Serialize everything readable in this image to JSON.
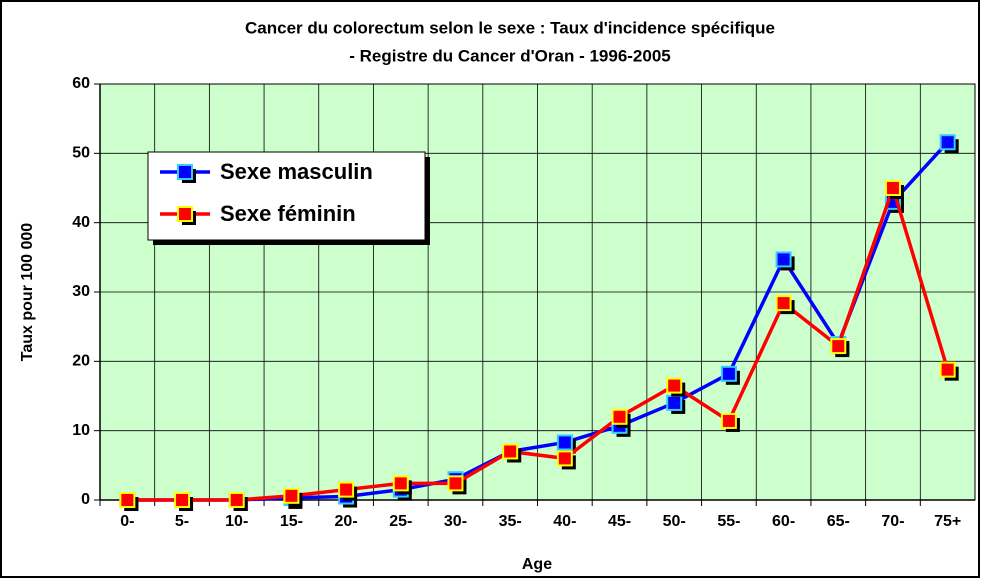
{
  "chart_data": {
    "type": "line",
    "title": "Cancer du colorectum selon le sexe : Taux d'incidence spécifique",
    "subtitle": "- Registre du Cancer d'Oran  - 1996-2005",
    "x_label": "Age",
    "y_label": "Taux pour 100 000",
    "categories": [
      "0-",
      "5-",
      "10-",
      "15-",
      "20-",
      "25-",
      "30-",
      "35-",
      "40-",
      "45-",
      "50-",
      "55-",
      "60-",
      "65-",
      "70-",
      "75+"
    ],
    "series": [
      {
        "name": "Sexe masculin",
        "color": "#0000ff",
        "marker_fill": "#0000ff",
        "marker_edge": "#33ccff",
        "values": [
          0,
          0,
          0,
          0.3,
          0.5,
          1.5,
          3,
          7,
          8.3,
          10.7,
          14,
          18.2,
          34.7,
          22.5,
          43,
          51.6
        ]
      },
      {
        "name": "Sexe féminin",
        "color": "#ff0000",
        "marker_fill": "#ff0000",
        "marker_edge": "#ffff00",
        "values": [
          0,
          0,
          0,
          0.6,
          1.5,
          2.4,
          2.4,
          7,
          6,
          12,
          16.5,
          11.4,
          28.4,
          22.2,
          45,
          18.8
        ]
      }
    ],
    "ylim": [
      0,
      60
    ],
    "yticks": [
      0,
      10,
      20,
      30,
      40,
      50,
      60
    ],
    "grid": true,
    "plot_background": "#ccffcc"
  }
}
